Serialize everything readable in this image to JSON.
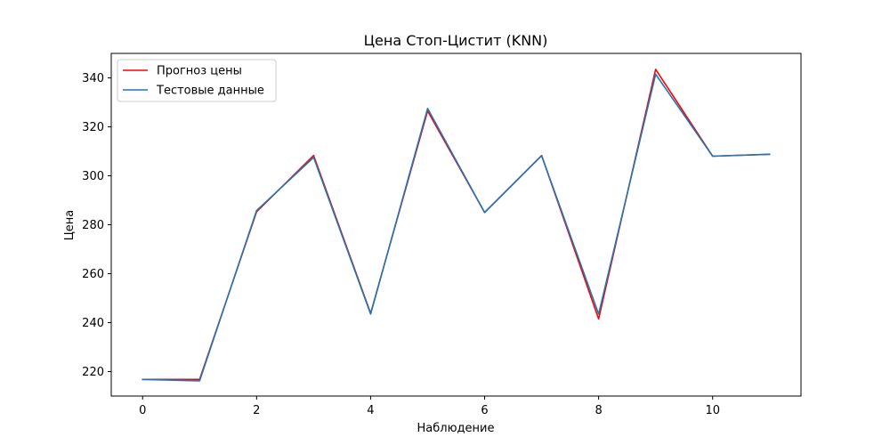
{
  "chart_data": {
    "type": "line",
    "title": "Цена Стоп-Цистит  (KNN)",
    "xlabel": "Наблюдение",
    "ylabel": "Цена",
    "x": [
      0,
      1,
      2,
      3,
      4,
      5,
      6,
      7,
      8,
      9,
      10,
      11
    ],
    "xlim": [
      -0.55,
      11.55
    ],
    "ylim": [
      210,
      350
    ],
    "xticks": [
      0,
      2,
      4,
      6,
      8,
      10
    ],
    "yticks": [
      220,
      240,
      260,
      280,
      300,
      320,
      340
    ],
    "grid": false,
    "legend_position": "upper-left",
    "series": [
      {
        "name": "Прогноз цены",
        "color": "#ff0000",
        "values": [
          216.8,
          216.8,
          285.3,
          308.3,
          243.8,
          326.5,
          285.0,
          308.3,
          241.5,
          343.5,
          308.0,
          308.8
        ]
      },
      {
        "name": "Тестовые данные",
        "color": "#1f77b4",
        "values": [
          216.8,
          216.2,
          285.8,
          307.5,
          243.5,
          327.5,
          285.0,
          308.2,
          243.5,
          341.5,
          308.0,
          308.8
        ]
      }
    ]
  }
}
